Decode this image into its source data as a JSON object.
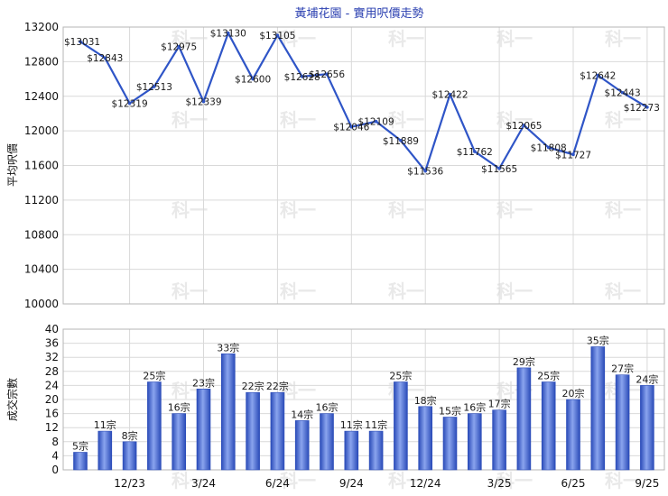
{
  "chart_data": [
    {
      "type": "line",
      "title": "黃埔花園 - 實用呎價走勢",
      "ylabel": "平均呎價",
      "ylim": [
        10000,
        13200
      ],
      "yticks": [
        10000,
        10400,
        10800,
        11200,
        11600,
        12000,
        12400,
        12800,
        13200
      ],
      "color": "#2f55c7",
      "values": [
        13031,
        12843,
        12319,
        12513,
        12975,
        12339,
        13130,
        12600,
        13105,
        12628,
        12656,
        12046,
        12109,
        11889,
        11536,
        12422,
        11762,
        11565,
        12065,
        11808,
        11727,
        12642,
        12443,
        12273
      ],
      "point_labels": [
        "$13031",
        "$12843",
        "$12319",
        "$12513",
        "$12975",
        "$12339",
        "$13130",
        "$12600",
        "$13105",
        "$12628",
        "$12656",
        "$12046",
        "$12109",
        "$11889",
        "$11536",
        "$12422",
        "$11762",
        "$11565",
        "$12065",
        "$11808",
        "$11727",
        "$12642",
        "$12443",
        "$12273"
      ]
    },
    {
      "type": "bar",
      "ylabel": "成交宗數",
      "ylim": [
        0,
        40
      ],
      "yticks": [
        0,
        4,
        8,
        12,
        16,
        20,
        24,
        28,
        32,
        36,
        40
      ],
      "color": "#3f63cc",
      "values": [
        5,
        11,
        8,
        25,
        16,
        23,
        33,
        22,
        22,
        14,
        16,
        11,
        11,
        25,
        18,
        15,
        16,
        17,
        29,
        25,
        20,
        35,
        27,
        24
      ],
      "bar_labels": [
        "5宗",
        "11宗",
        "8宗",
        "25宗",
        "16宗",
        "23宗",
        "33宗",
        "22宗",
        "22宗",
        "14宗",
        "16宗",
        "11宗",
        "11宗",
        "25宗",
        "18宗",
        "15宗",
        "16宗",
        "17宗",
        "29宗",
        "25宗",
        "20宗",
        "35宗",
        "27宗",
        "24宗"
      ]
    }
  ],
  "x_ticks": [
    {
      "index": 2,
      "label": "12/23"
    },
    {
      "index": 5,
      "label": "3/24"
    },
    {
      "index": 8,
      "label": "6/24"
    },
    {
      "index": 11,
      "label": "9/24"
    },
    {
      "index": 14,
      "label": "12/24"
    },
    {
      "index": 17,
      "label": "3/25"
    },
    {
      "index": 20,
      "label": "6/25"
    },
    {
      "index": 23,
      "label": "9/25"
    }
  ],
  "watermark": "科一"
}
